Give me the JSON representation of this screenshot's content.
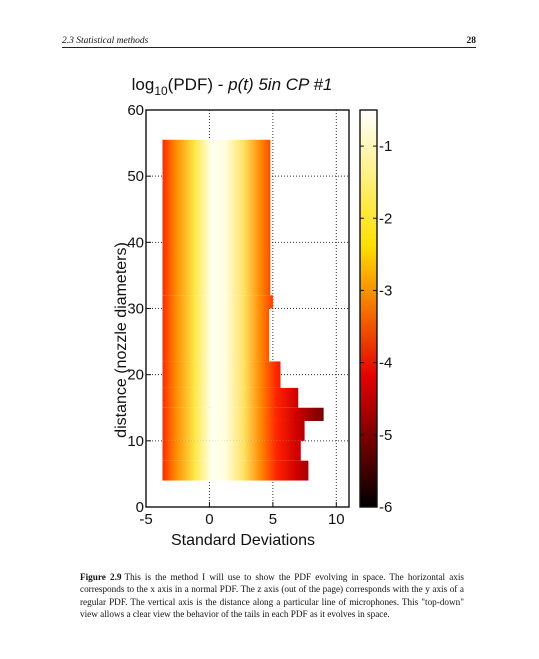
{
  "header": {
    "section": "2.3 Statistical methods",
    "page_number": "28"
  },
  "figure": {
    "title_prefix": "log",
    "title_sub": "10",
    "title_suffix_plain": "(PDF) - ",
    "title_suffix_italic": "p(t) 5in CP #1",
    "xlabel": "Standard Deviations",
    "ylabel": "distance (nozzle diameters)",
    "x_ticks": [
      "-5",
      "0",
      "5",
      "10"
    ],
    "y_ticks": [
      "0",
      "10",
      "20",
      "30",
      "40",
      "50",
      "60"
    ],
    "colorbar_ticks": [
      "-1",
      "-2",
      "-3",
      "-4",
      "-5",
      "-6"
    ],
    "colormap": "hot",
    "colors": {
      "dark": "#1a0000",
      "red": "#e60000",
      "orange": "#ff8c00",
      "yellow": "#ffee00",
      "white": "#ffffe0"
    }
  },
  "chart_data": {
    "type": "heatmap",
    "title": "log10(PDF) - p(t) 5in CP #1",
    "xlabel": "Standard Deviations",
    "ylabel": "distance (nozzle diameters)",
    "xlim": [
      -5,
      11
    ],
    "ylim": [
      0,
      60
    ],
    "clim": [
      -6,
      -0.5
    ],
    "grid": true,
    "y_extent": [
      4,
      55.5
    ],
    "left_edge_std": -3.7,
    "right_edge_by_distance": [
      {
        "y_from": 4,
        "y_to": 7,
        "x_right": 7.8
      },
      {
        "y_from": 7,
        "y_to": 10,
        "x_right": 7.2
      },
      {
        "y_from": 10,
        "y_to": 13,
        "x_right": 7.5
      },
      {
        "y_from": 13,
        "y_to": 15,
        "x_right": 9.0
      },
      {
        "y_from": 15,
        "y_to": 18,
        "x_right": 7.0
      },
      {
        "y_from": 18,
        "y_to": 22,
        "x_right": 5.6
      },
      {
        "y_from": 22,
        "y_to": 30,
        "x_right": 4.7
      },
      {
        "y_from": 30,
        "y_to": 32,
        "x_right": 5.0
      },
      {
        "y_from": 32,
        "y_to": 55.5,
        "x_right": 4.8
      }
    ]
  },
  "caption": {
    "label": "Figure 2.9",
    "text": "This is the method I will use to show the PDF evolving in space. The horizontal axis corresponds to the x axis in a normal PDF. The z axis (out of the page) corresponds with the y axis of a regular PDF. The vertical axis is the distance along a particular line of microphones. This \"top-down\" view allows a clear view the behavior of the tails in each PDF as it evolves in space."
  }
}
